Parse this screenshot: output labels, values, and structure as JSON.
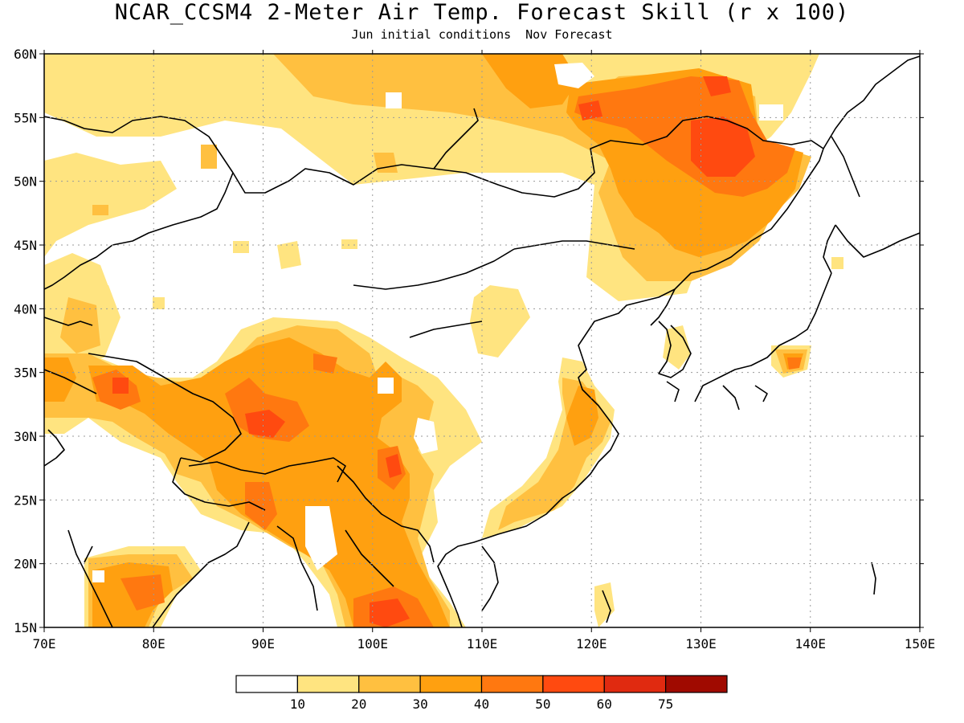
{
  "title": "NCAR_CCSM4 2-Meter Air Temp. Forecast Skill (r x 100)",
  "subtitle": {
    "initial": "Jun initial conditions",
    "forecast": "Nov Forecast"
  },
  "map": {
    "lon_range": [
      70,
      150
    ],
    "lat_range": [
      15,
      60
    ],
    "lon_ticks": [
      "70E",
      "80E",
      "90E",
      "100E",
      "110E",
      "120E",
      "130E",
      "140E",
      "150E"
    ],
    "lat_ticks": [
      "15N",
      "20N",
      "25N",
      "30N",
      "35N",
      "40N",
      "45N",
      "50N",
      "55N",
      "60N"
    ],
    "grid": "dotted"
  },
  "colorbar": {
    "labels": [
      "10",
      "20",
      "30",
      "40",
      "50",
      "60",
      "75"
    ],
    "colors": [
      "#ffffff",
      "#ffe480",
      "#ffc040",
      "#ffa010",
      "#ff7810",
      "#ff4a10",
      "#e02a10",
      "#a00a00"
    ]
  }
}
